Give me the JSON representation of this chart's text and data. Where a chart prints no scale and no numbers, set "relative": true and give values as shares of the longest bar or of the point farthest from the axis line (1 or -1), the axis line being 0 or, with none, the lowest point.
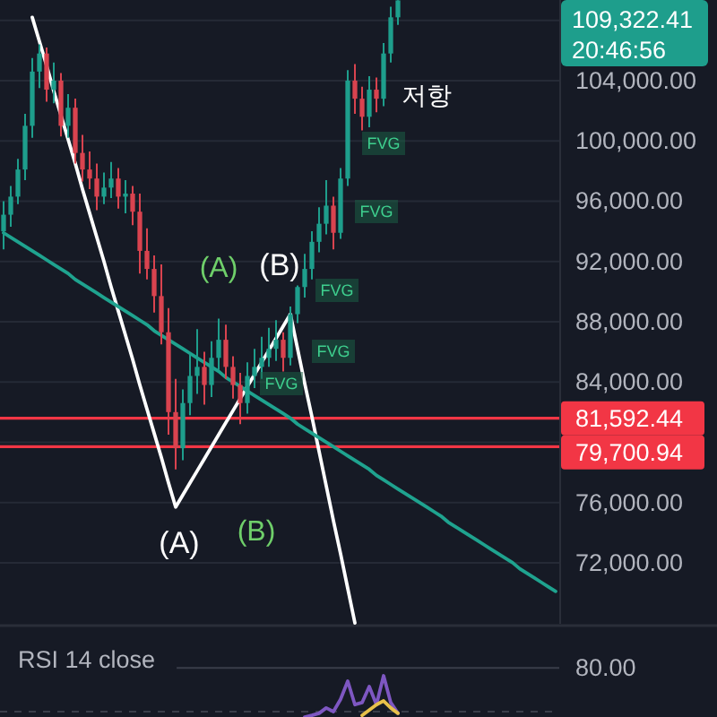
{
  "chart_data": [
    {
      "type": "candlestick",
      "categories": [
        null,
        null,
        null,
        null,
        null,
        null,
        null,
        null,
        null,
        null,
        null,
        null,
        null,
        null,
        null,
        null,
        null,
        null,
        null,
        null,
        null,
        null,
        null,
        null,
        null,
        null,
        null,
        null,
        null,
        null,
        null,
        null,
        null,
        null,
        null,
        null,
        null,
        null,
        null,
        null,
        null,
        null,
        null,
        null,
        null,
        null,
        null,
        null,
        null,
        null,
        null,
        null,
        null,
        null,
        null,
        null,
        null,
        null,
        null,
        null,
        null,
        null,
        null,
        null,
        null,
        null,
        null,
        null,
        null,
        null,
        null,
        null,
        null,
        null,
        null,
        null,
        null,
        null
      ],
      "ohlc": [
        [
          94000,
          96000,
          92800,
          95100
        ],
        [
          95100,
          97000,
          94300,
          96300
        ],
        [
          96300,
          98800,
          95800,
          98100
        ],
        [
          98100,
          101800,
          97400,
          101000
        ],
        [
          101000,
          105500,
          100200,
          104600
        ],
        [
          104600,
          106400,
          103500,
          105800
        ],
        [
          105800,
          106200,
          102600,
          103400
        ],
        [
          103400,
          105200,
          102500,
          104000
        ],
        [
          104000,
          104500,
          100300,
          101000
        ],
        [
          101000,
          103100,
          100200,
          102200
        ],
        [
          102200,
          102800,
          98500,
          99200
        ],
        [
          99200,
          100400,
          97300,
          98100
        ],
        [
          98100,
          99300,
          96800,
          97500
        ],
        [
          97500,
          98500,
          95400,
          96300
        ],
        [
          96300,
          97900,
          95800,
          96900
        ],
        [
          96900,
          98600,
          96200,
          97500
        ],
        [
          97500,
          98200,
          95500,
          96300
        ],
        [
          96300,
          97400,
          95200,
          96500
        ],
        [
          96500,
          97000,
          94400,
          95300
        ],
        [
          95300,
          96500,
          91200,
          92700
        ],
        [
          92700,
          94200,
          90800,
          91500
        ],
        [
          91500,
          92400,
          88600,
          89700
        ],
        [
          89700,
          91800,
          86500,
          87300
        ],
        [
          87300,
          88900,
          80500,
          82000
        ],
        [
          82000,
          84200,
          78200,
          79600
        ],
        [
          79600,
          83500,
          78800,
          82600
        ],
        [
          82600,
          85900,
          81800,
          84400
        ],
        [
          84400,
          87500,
          83200,
          85000
        ],
        [
          85000,
          86000,
          82500,
          83800
        ],
        [
          83800,
          86700,
          83000,
          85600
        ],
        [
          85600,
          88200,
          84800,
          86800
        ],
        [
          86800,
          87800,
          84200,
          85000
        ],
        [
          85000,
          85700,
          82900,
          83800
        ],
        [
          83800,
          84600,
          81200,
          82600
        ],
        [
          82600,
          85300,
          81900,
          84400
        ],
        [
          84400,
          86200,
          83600,
          85000
        ],
        [
          85000,
          87000,
          84200,
          85600
        ],
        [
          85600,
          87600,
          85000,
          86200
        ],
        [
          86200,
          88100,
          85400,
          86800
        ],
        [
          86800,
          87300,
          84700,
          85600
        ],
        [
          85600,
          89000,
          85100,
          88500
        ],
        [
          88500,
          90400,
          87900,
          90300
        ],
        [
          90300,
          92500,
          89600,
          91500
        ],
        [
          91500,
          94000,
          90800,
          93300
        ],
        [
          93300,
          95600,
          92600,
          94500
        ],
        [
          94500,
          97400,
          93800,
          95700
        ],
        [
          95700,
          96300,
          92800,
          93900
        ],
        [
          93900,
          98200,
          93500,
          97500
        ],
        [
          97500,
          104700,
          97000,
          104000
        ],
        [
          104000,
          105100,
          101800,
          102800
        ],
        [
          102800,
          103600,
          100700,
          101600
        ],
        [
          101600,
          104300,
          100900,
          103400
        ],
        [
          103400,
          104200,
          101900,
          102800
        ],
        [
          102800,
          106500,
          102300,
          105800
        ],
        [
          105800,
          108900,
          105200,
          108200
        ],
        [
          108200,
          109340,
          107700,
          109322.41
        ],
        null,
        null,
        null,
        null,
        null,
        null,
        null,
        null,
        null,
        null,
        null,
        null,
        null,
        null,
        null,
        null,
        null,
        null,
        null,
        null,
        null,
        null
      ],
      "colors": [
        "#1e9e8c",
        "#1e9e8c",
        "#1e9e8c",
        "#1e9e8c",
        "#1e9e8c",
        "#1e9e8c",
        "#d9434f",
        "#1e9e8c",
        "#d9434f",
        "#1e9e8c",
        "#d9434f",
        "#d9434f",
        "#d9434f",
        "#d9434f",
        "#1e9e8c",
        "#1e9e8c",
        "#d9434f",
        "#1e9e8c",
        "#d9434f",
        "#d9434f",
        "#d9434f",
        "#d9434f",
        "#d9434f",
        "#d9434f",
        "#d9434f",
        "#1e9e8c",
        "#1e9e8c",
        "#1e9e8c",
        "#d9434f",
        "#1e9e8c",
        "#1e9e8c",
        "#d9434f",
        "#d9434f",
        "#d9434f",
        "#1e9e8c",
        "#1e9e8c",
        "#1e9e8c",
        "#1e9e8c",
        "#1e9e8c",
        "#d9434f",
        "#1e9e8c",
        "#1e9e8c",
        "#1e9e8c",
        "#1e9e8c",
        "#1e9e8c",
        "#1e9e8c",
        "#d9434f",
        "#1e9e8c",
        "#1e9e8c",
        "#d9434f",
        "#d9434f",
        "#1e9e8c",
        "#d9434f",
        "#1e9e8c",
        "#1e9e8c",
        "#1e9e8c",
        null,
        null,
        null,
        null,
        null,
        null,
        null,
        null,
        null,
        null,
        null,
        null,
        null,
        null,
        null,
        null,
        null,
        null,
        null,
        null,
        null,
        null
      ],
      "series": [
        {
          "type": "line",
          "color": "#ffffff",
          "values": [
            null,
            null,
            null,
            null,
            108200,
            106600,
            105000,
            103300,
            101700,
            100100,
            98500,
            96800,
            95200,
            93600,
            92000,
            90300,
            88700,
            87100,
            85500,
            83800,
            82200,
            80600,
            79000,
            77300,
            75700,
            76500,
            77300,
            78100,
            78900,
            79700,
            80500,
            81300,
            82100,
            82900,
            83700,
            84500,
            85300,
            86100,
            86900,
            87700,
            88500,
            86200,
            83900,
            81700,
            79400,
            77100,
            74800,
            72600,
            70300,
            68000,
            null,
            null,
            null,
            null,
            null,
            null,
            null,
            null,
            null,
            null,
            null,
            null,
            null,
            null,
            null,
            null,
            null,
            null,
            null,
            null,
            null,
            null,
            null,
            null,
            null,
            null,
            null,
            null
          ]
        },
        {
          "type": "line",
          "color": "#1fa38f",
          "values": [
            93900,
            93600,
            93300,
            93000,
            92700,
            92400,
            92100,
            91800,
            91500,
            91200,
            90800,
            90500,
            90200,
            89900,
            89600,
            89300,
            89000,
            88700,
            88400,
            88100,
            87800,
            87400,
            87100,
            86800,
            86500,
            86200,
            85900,
            85600,
            85300,
            85000,
            84700,
            84300,
            84000,
            83700,
            83400,
            83100,
            82800,
            82500,
            82200,
            81900,
            81600,
            81200,
            80900,
            80600,
            80300,
            80000,
            79700,
            79400,
            79100,
            78800,
            78500,
            78200,
            77800,
            77500,
            77200,
            76900,
            76600,
            76300,
            76000,
            75700,
            75400,
            75100,
            74700,
            74400,
            74100,
            73800,
            73500,
            73200,
            72900,
            72600,
            72300,
            72000,
            71600,
            71300,
            71000,
            70700,
            70400,
            70100
          ]
        }
      ],
      "ylim": [
        67950,
        109350
      ],
      "yticks": [
        {
          "value": 72000,
          "label": "72,000.00"
        },
        {
          "value": 76000,
          "label": "76,000.00"
        },
        {
          "value": 80000,
          "label": null
        },
        {
          "value": 84000,
          "label": "84,000.00"
        },
        {
          "value": 88000,
          "label": "88,000.00"
        },
        {
          "value": 92000,
          "label": "92,000.00"
        },
        {
          "value": 96000,
          "label": "96,000.00"
        },
        {
          "value": 100000,
          "label": "100,000.00"
        },
        {
          "value": 104000,
          "label": "104,000.00"
        },
        {
          "value": 108000,
          "label": null
        }
      ],
      "grid": "y",
      "tick_labels": "y",
      "ref_lines": [
        {
          "axis": "y",
          "value": 81592.44,
          "label": "81,592.44",
          "color": "#f23645"
        },
        {
          "axis": "y",
          "value": 79700.94,
          "label": "79,700.94",
          "color": "#f23645"
        }
      ],
      "annotations": [
        "(A)",
        "(B)",
        "(A)",
        "(B)",
        "FVG",
        "FVG",
        "FVG",
        "FVG",
        "FVG",
        "저항",
        "109,322.41",
        "20:46:56"
      ]
    },
    {
      "type": "line",
      "title": "RSI 14 close",
      "relative": true,
      "categories": [
        null,
        null,
        null,
        null,
        null,
        null,
        null,
        null,
        null,
        null,
        null,
        null,
        null,
        null,
        null,
        null,
        null,
        null,
        null,
        null,
        null,
        null,
        null,
        null,
        null,
        null,
        null,
        null,
        null,
        null,
        null,
        null,
        null,
        null,
        null,
        null,
        null,
        null,
        null,
        null,
        null,
        null,
        null,
        null,
        null,
        null,
        null,
        null,
        null,
        null,
        null,
        null,
        null,
        null,
        null,
        null,
        null,
        null,
        null,
        null,
        null,
        null,
        null,
        null,
        null,
        null,
        null,
        null,
        null,
        null,
        null,
        null,
        null,
        null,
        null,
        null,
        null,
        null
      ],
      "series": [
        {
          "color": "#7e57c2",
          "values": [
            null,
            null,
            null,
            null,
            null,
            null,
            null,
            null,
            null,
            null,
            null,
            null,
            null,
            null,
            null,
            null,
            null,
            null,
            null,
            null,
            null,
            null,
            null,
            null,
            null,
            null,
            null,
            null,
            null,
            null,
            null,
            null,
            null,
            null,
            null,
            null,
            null,
            null,
            null,
            null,
            null,
            null,
            0,
            0.04,
            0.09,
            0.22,
            0.13,
            0.43,
            0.87,
            0.3,
            0.35,
            0.74,
            0.3,
            1,
            0.35,
            0.09,
            null,
            null,
            null,
            null,
            null,
            null,
            null,
            null,
            null,
            null,
            null,
            null,
            null,
            null,
            null,
            null,
            null,
            null,
            null,
            null,
            null,
            null
          ]
        },
        {
          "color": "#e8c14a",
          "values": [
            null,
            null,
            null,
            null,
            null,
            null,
            null,
            null,
            null,
            null,
            null,
            null,
            null,
            null,
            null,
            null,
            null,
            null,
            null,
            null,
            null,
            null,
            null,
            null,
            null,
            null,
            null,
            null,
            null,
            null,
            null,
            null,
            null,
            null,
            null,
            null,
            null,
            null,
            null,
            null,
            null,
            null,
            null,
            null,
            null,
            null,
            null,
            null,
            null,
            null,
            0.04,
            0.17,
            0.3,
            0.39,
            0.22,
            0.09,
            null,
            null,
            null,
            null,
            null,
            null,
            null,
            null,
            null,
            null,
            null,
            null,
            null,
            null,
            null,
            null,
            null,
            null,
            null,
            null,
            null,
            null
          ]
        }
      ],
      "ref_lines": [
        {
          "axis": "y",
          "value": 1.19
        },
        {
          "axis": "y",
          "value": 0.13,
          "line_style": "dashed"
        }
      ],
      "annotations": [
        "80.00"
      ]
    }
  ]
}
